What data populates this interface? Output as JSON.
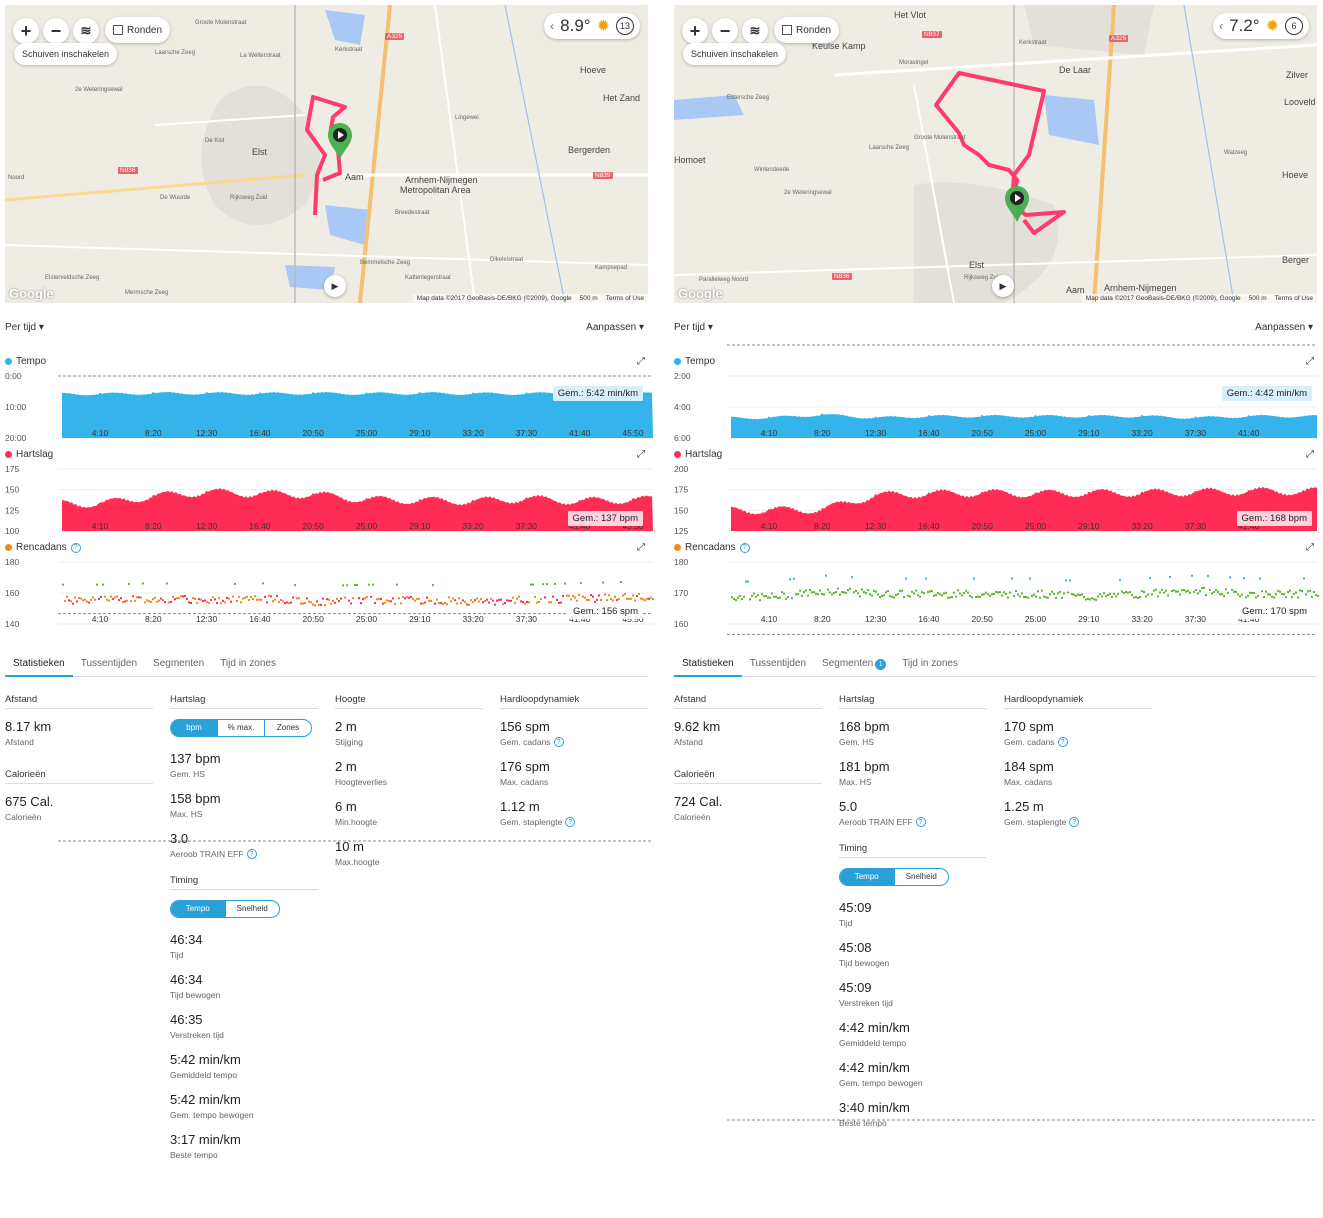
{
  "colors": {
    "accent": "#2aa0d8",
    "tempo": "#34b4ea",
    "heart": "#ff2d55",
    "cadence_orange": "#f08a1d",
    "cadence_green": "#5cb82e",
    "route": "#ff3b6b",
    "marker": "#4caf50"
  },
  "map_common": {
    "zoom_in": "+",
    "zoom_out": "−",
    "layers_icon": "layers-icon",
    "laps_label": "Ronden",
    "pan_label": "Schuiven inschakelen",
    "map_data": "Map data ©2017 GeoBasis-DE/BKG (©2009), Google",
    "scale": "500 m",
    "terms": "Terms of Use",
    "google": "Google"
  },
  "left": {
    "map": {
      "temperature": "8.9°",
      "wind": "13",
      "labels": [
        "Laarsche Zeeg",
        "Groote Molenstraat",
        "La Welterstraat",
        "Kerkstraat",
        "A325",
        "Hoeve",
        "Het Zand",
        "Bergerden",
        "2e Weteringsewal",
        "Elst",
        "De Kist",
        "Aam",
        "Arnhem-Nijmegen",
        "Metropolitan Area",
        "N836",
        "N839",
        "Noord",
        "De Wuurde",
        "Rijksweg Zuid",
        "Breedestraat",
        "Bemmelsche Zeeg",
        "Mermsche Zeeg",
        "Elsterveldsche Zeeg",
        "Kattenlegerstraat",
        "Dikeleistraat",
        "Kampsepad",
        "Lingewei"
      ]
    },
    "toolbar": {
      "per_time": "Per tijd ▾",
      "customize": "Aanpassen ▾"
    },
    "chart_data": [
      {
        "type": "area",
        "title": "Tempo",
        "y_ticks": [
          "0:00",
          "10:00",
          "20:00"
        ],
        "ylim": [
          "0:00",
          "20:00"
        ],
        "inverted": true,
        "x": [
          "4:10",
          "8:20",
          "12:30",
          "16:40",
          "20:50",
          "25:00",
          "29:10",
          "33:20",
          "37:30",
          "41:40",
          "45:50"
        ],
        "values_min_per_km": [
          5.8,
          5.6,
          5.6,
          5.7,
          5.6,
          5.7,
          5.6,
          5.7,
          5.7,
          5.5,
          5.7
        ],
        "average_label": "Gem.: 5:42 min/km"
      },
      {
        "type": "area",
        "title": "Hartslag",
        "y_ticks": [
          "175",
          "150",
          "125",
          "100"
        ],
        "ylim": [
          100,
          175
        ],
        "x": [
          "4:10",
          "8:20",
          "12:30",
          "16:40",
          "20:50",
          "25:00",
          "29:10",
          "33:20",
          "37:30",
          "41:40",
          "45:50"
        ],
        "values_bpm": [
          133,
          142,
          147,
          145,
          144,
          138,
          137,
          136,
          139,
          136,
          138
        ],
        "average_label": "Gem.: 137 bpm"
      },
      {
        "type": "scatter",
        "title": "Rencadans",
        "y_ticks": [
          "180",
          "160",
          "140"
        ],
        "ylim": [
          140,
          180
        ],
        "x": [
          "4:10",
          "8:20",
          "12:30",
          "16:40",
          "20:50",
          "25:00",
          "29:10",
          "33:20",
          "37:30",
          "41:40",
          "45:50"
        ],
        "values_spm": [
          156,
          157,
          156,
          157,
          155,
          156,
          156,
          155,
          156,
          157,
          158
        ],
        "average_label": "Gem.: 156 spm"
      }
    ],
    "tabs": [
      "Statistieken",
      "Tussentijden",
      "Segmenten",
      "Tijd in zones"
    ],
    "stats": {
      "distance": {
        "title": "Afstand",
        "value": "8.17 km",
        "label": "Afstand"
      },
      "calories": {
        "title": "Calorieën",
        "value": "675 Cal.",
        "label": "Calorieën"
      },
      "heart": {
        "title": "Hartslag",
        "toggle": [
          "bpm",
          "% max.",
          "Zones"
        ],
        "items": [
          {
            "value": "137 bpm",
            "label": "Gem. HS"
          },
          {
            "value": "158 bpm",
            "label": "Max. HS"
          },
          {
            "value": "3.0",
            "label": "Aeroob TRAIN EFF"
          }
        ]
      },
      "timing": {
        "title": "Timing",
        "toggle": [
          "Tempo",
          "Snelheid"
        ],
        "items": [
          {
            "value": "46:34",
            "label": "Tijd"
          },
          {
            "value": "46:34",
            "label": "Tijd bewogen"
          },
          {
            "value": "46:35",
            "label": "Verstreken tijd"
          },
          {
            "value": "5:42 min/km",
            "label": "Gemiddeld tempo"
          },
          {
            "value": "5:42 min/km",
            "label": "Gem. tempo bewogen"
          },
          {
            "value": "3:17 min/km",
            "label": "Beste tempo"
          }
        ]
      },
      "elevation": {
        "title": "Hoogte",
        "items": [
          {
            "value": "2 m",
            "label": "Stijging"
          },
          {
            "value": "2 m",
            "label": "Hoogteverlies"
          },
          {
            "value": "6 m",
            "label": "Min.hoogte"
          },
          {
            "value": "10 m",
            "label": "Max.hoogte"
          }
        ]
      },
      "dynamics": {
        "title": "Hardloopdynamiek",
        "items": [
          {
            "value": "156 spm",
            "label": "Gem. cadans"
          },
          {
            "value": "176 spm",
            "label": "Max. cadans"
          },
          {
            "value": "1.12 m",
            "label": "Gem. staplengte"
          }
        ]
      }
    }
  },
  "right": {
    "map": {
      "temperature": "7.2°",
      "wind": "6",
      "labels": [
        "Het Vlot",
        "Keulse Kamp",
        "N837",
        "De Laar",
        "Morasingel",
        "Eldersche Zeeg",
        "Laarsche Zeeg",
        "Homoet",
        "Wintersteede",
        "2e Weteringsewal",
        "Groote Molenstraat",
        "A325",
        "Walzeeg",
        "Elst",
        "Aam",
        "Arnhem-Nijmegen",
        "N836",
        "Parallelweg Noord",
        "Looveld",
        "Zilver",
        "Hoeve",
        "Berger",
        "Rijksweg Zuid",
        "Kerkstraat"
      ]
    },
    "toolbar": {
      "per_time": "Per tijd ▾",
      "customize": "Aanpassen ▾"
    },
    "chart_data": [
      {
        "type": "area",
        "title": "Tempo",
        "y_ticks": [
          "2:00",
          "4:00",
          "6:00"
        ],
        "ylim": [
          "2:00",
          "6:00"
        ],
        "inverted": true,
        "x": [
          "4:10",
          "8:20",
          "12:30",
          "16:40",
          "20:50",
          "25:00",
          "29:10",
          "33:20",
          "37:30",
          "41:40"
        ],
        "values_min_per_km": [
          4.7,
          4.5,
          4.7,
          4.6,
          4.6,
          4.6,
          4.6,
          4.6,
          4.7,
          4.6
        ],
        "average_label": "Gem.: 4:42 min/km"
      },
      {
        "type": "area",
        "title": "Hartslag",
        "y_ticks": [
          "200",
          "175",
          "150",
          "125"
        ],
        "ylim": [
          125,
          200
        ],
        "x": [
          "4:10",
          "8:20",
          "12:30",
          "16:40",
          "20:50",
          "25:00",
          "29:10",
          "33:20",
          "37:30",
          "41:40"
        ],
        "values_bpm": [
          150,
          151,
          168,
          170,
          171,
          170,
          171,
          171,
          172,
          173
        ],
        "average_label": "Gem.: 168 bpm"
      },
      {
        "type": "scatter",
        "title": "Rencadans",
        "y_ticks": [
          "180",
          "170",
          "160"
        ],
        "ylim": [
          160,
          180
        ],
        "x": [
          "4:10",
          "8:20",
          "12:30",
          "16:40",
          "20:50",
          "25:00",
          "29:10",
          "33:20",
          "37:30",
          "41:40"
        ],
        "values_spm": [
          169,
          171,
          170,
          170,
          170,
          170,
          169,
          170,
          171,
          170
        ],
        "average_label": "Gem.: 170 spm"
      }
    ],
    "tabs": [
      "Statistieken",
      "Tussentijden",
      "Segmenten",
      "Tijd in zones"
    ],
    "segments_badge": "1",
    "stats": {
      "distance": {
        "title": "Afstand",
        "value": "9.62 km",
        "label": "Afstand"
      },
      "calories": {
        "title": "Calorieën",
        "value": "724 Cal.",
        "label": "Calorieën"
      },
      "heart": {
        "title": "Hartslag",
        "items": [
          {
            "value": "168 bpm",
            "label": "Gem. HS"
          },
          {
            "value": "181 bpm",
            "label": "Max. HS"
          },
          {
            "value": "5.0",
            "label": "Aeroob TRAIN EFF"
          }
        ]
      },
      "timing": {
        "title": "Timing",
        "toggle": [
          "Tempo",
          "Snelheid"
        ],
        "items": [
          {
            "value": "45:09",
            "label": "Tijd"
          },
          {
            "value": "45:08",
            "label": "Tijd bewogen"
          },
          {
            "value": "45:09",
            "label": "Verstreken tijd"
          },
          {
            "value": "4:42 min/km",
            "label": "Gemiddeld tempo"
          },
          {
            "value": "4:42 min/km",
            "label": "Gem. tempo bewogen"
          },
          {
            "value": "3:40 min/km",
            "label": "Beste tempo"
          }
        ]
      },
      "dynamics": {
        "title": "Hardloopdynamiek",
        "items": [
          {
            "value": "170 spm",
            "label": "Gem. cadans"
          },
          {
            "value": "184 spm",
            "label": "Max. cadans"
          },
          {
            "value": "1.25 m",
            "label": "Gem. staplengte"
          }
        ]
      }
    }
  }
}
